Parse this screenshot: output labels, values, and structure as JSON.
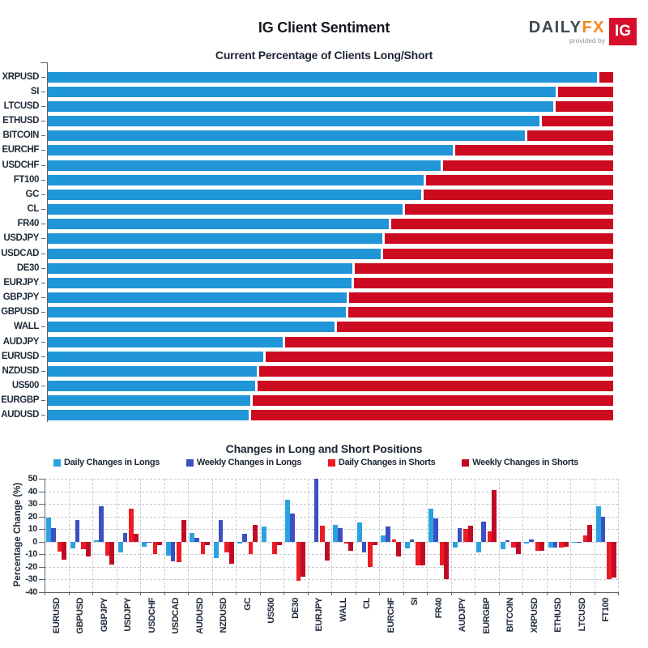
{
  "header": {
    "title": "IG Client Sentiment",
    "logo": {
      "brand": "DAILY",
      "brand_accent": "FX",
      "provided_by": "provided by",
      "ig": "IG"
    }
  },
  "colors": {
    "top_long": "#2095d7",
    "top_short": "#cc0b20",
    "text_navy": "#1f2b3a",
    "grid": "#c6cacf",
    "axis": "#60656c"
  },
  "chart_data": [
    {
      "type": "bar",
      "orientation": "horizontal-stacked",
      "title": "Current Percentage of Clients Long/Short",
      "xlim": [
        0,
        100
      ],
      "categories": [
        "XRPUSD",
        "SI",
        "LTCUSD",
        "ETHUSD",
        "BITCOIN",
        "EURCHF",
        "USDCHF",
        "FT100",
        "GC",
        "CL",
        "FR40",
        "USDJPY",
        "USDCAD",
        "DE30",
        "EURJPY",
        "GBPJPY",
        "GBPUSD",
        "WALL",
        "AUDJPY",
        "EURUSD",
        "NZDUSD",
        "US500",
        "EURGBP",
        "AUDUSD"
      ],
      "series": [
        {
          "name": "Percent Long",
          "color": "#2095d7",
          "values": [
            97.3,
            90.1,
            89.6,
            87.2,
            84.6,
            71.9,
            69.7,
            66.7,
            66.3,
            62.9,
            60.6,
            59.4,
            59.1,
            54.1,
            53.9,
            53.1,
            52.9,
            50.9,
            41.7,
            38.3,
            37.2,
            36.9,
            36.0,
            35.8
          ]
        },
        {
          "name": "Percent Short",
          "color": "#cc0b20",
          "values": [
            2.7,
            9.9,
            10.4,
            12.8,
            15.4,
            28.1,
            30.3,
            33.3,
            33.7,
            37.1,
            39.4,
            40.6,
            40.9,
            45.9,
            46.1,
            46.9,
            47.1,
            49.1,
            58.3,
            61.7,
            62.8,
            63.1,
            64.0,
            64.2
          ]
        }
      ]
    },
    {
      "type": "bar",
      "orientation": "vertical-grouped",
      "title": "Changes in Long and Short Positions",
      "ylabel": "Percentage Change (%)",
      "ylim": [
        -40,
        50
      ],
      "yticks": [
        50,
        40,
        30,
        20,
        10,
        0,
        -10,
        -20,
        -30,
        -40
      ],
      "grid": "dashed",
      "legend_position": "top",
      "categories": [
        "EURUSD",
        "GBPUSD",
        "GBPJPY",
        "USDJPY",
        "USDCHF",
        "USDCAD",
        "AUDUSD",
        "NZDUSD",
        "GC",
        "US500",
        "DE30",
        "EURJPY",
        "WALL",
        "CL",
        "EURCHF",
        "SI",
        "FR40",
        "AUDJPY",
        "EURGBP",
        "BITCOIN",
        "XRPUSD",
        "ETHUSD",
        "LTCUSD",
        "FT100"
      ],
      "series": [
        {
          "name": "Daily Changes in Longs",
          "color": "#2ba2e0",
          "values": [
            19,
            -5,
            1,
            -8.5,
            -4,
            -11,
            7,
            -13,
            -1.5,
            12,
            33,
            0,
            13.5,
            15,
            5,
            -5,
            26.5,
            -4.5,
            -8.5,
            -6,
            -1.5,
            -4.5,
            -1,
            28
          ]
        },
        {
          "name": "Weekly Changes in Longs",
          "color": "#3b50c1",
          "values": [
            11,
            17.5,
            28,
            7,
            -1,
            -15.5,
            3,
            17.5,
            6,
            0,
            22.5,
            50,
            11,
            -8.5,
            12,
            2,
            18.5,
            11,
            16,
            1,
            2,
            -4.5,
            -1,
            20
          ]
        },
        {
          "name": "Daily Changes in Shorts",
          "color": "#ed1c24",
          "values": [
            -8,
            -6,
            -11,
            26,
            -10,
            -16,
            -10,
            -8.5,
            -9.5,
            -9.5,
            -31,
            12.5,
            -1.5,
            -20,
            1.5,
            -19,
            -19,
            10,
            8,
            -4.5,
            -7.5,
            -4.5,
            5,
            -30
          ]
        },
        {
          "name": "Weekly Changes in Shorts",
          "color": "#c00a26",
          "values": [
            -14.5,
            -11.5,
            -18,
            6,
            -3,
            17.5,
            -3,
            -17.5,
            13.5,
            -3,
            -28,
            -15,
            -7,
            -3,
            -12,
            -19,
            -30,
            12.5,
            41,
            -10,
            -7.5,
            -4,
            13.5,
            -28.5
          ]
        }
      ]
    }
  ]
}
